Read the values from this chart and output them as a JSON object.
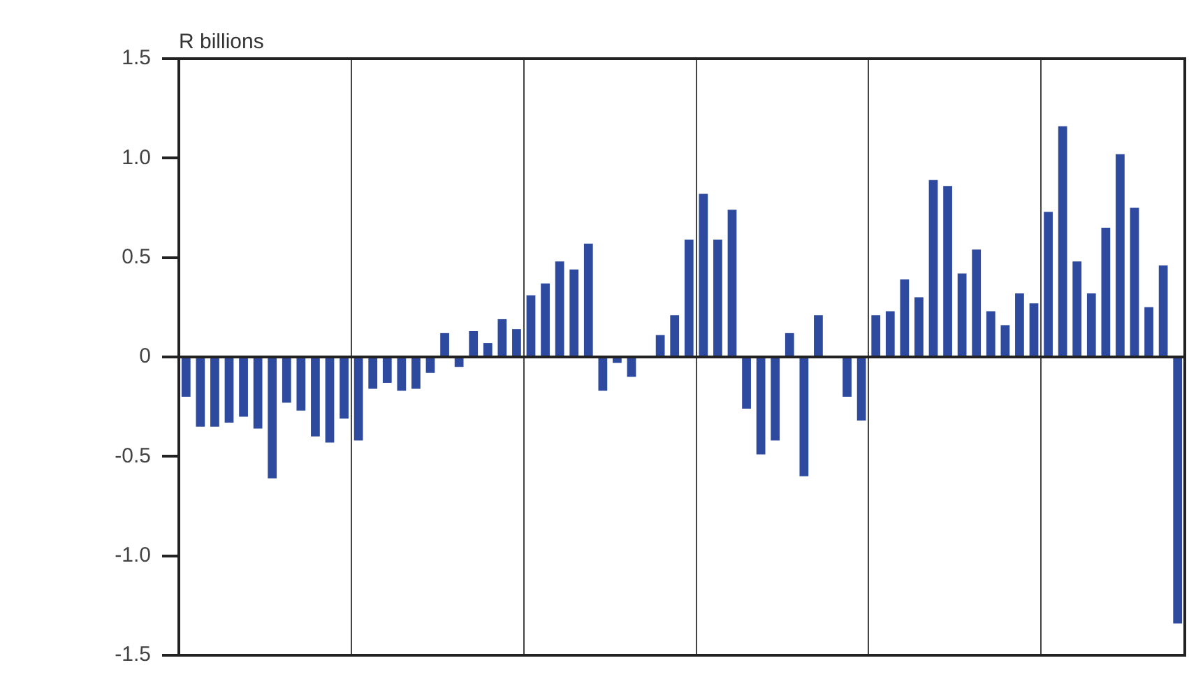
{
  "chart_data": {
    "type": "bar",
    "ylabel": "R billions",
    "categories": [
      null,
      null,
      null,
      null,
      null,
      null,
      null,
      null,
      null,
      null,
      null,
      null,
      null,
      null,
      null,
      null,
      null,
      null,
      null,
      null,
      null,
      null,
      null,
      null,
      null,
      null,
      null,
      null,
      null,
      null,
      null,
      null,
      null,
      null,
      null,
      null,
      null,
      null,
      null,
      null,
      null,
      null,
      null,
      null,
      null,
      null,
      null,
      null,
      null,
      null,
      null,
      null,
      null,
      null,
      null,
      null,
      null,
      null,
      null,
      null,
      null,
      null,
      null,
      null,
      null,
      null,
      null,
      null,
      null,
      null
    ],
    "values": [
      -0.2,
      -0.35,
      -0.35,
      -0.33,
      -0.3,
      -0.36,
      -0.61,
      -0.23,
      -0.27,
      -0.4,
      -0.43,
      -0.31,
      -0.42,
      -0.16,
      -0.13,
      -0.17,
      -0.16,
      -0.08,
      0.12,
      -0.05,
      0.13,
      0.07,
      0.19,
      0.14,
      0.31,
      0.37,
      0.48,
      0.44,
      0.57,
      -0.17,
      -0.03,
      -0.1,
      0,
      0.11,
      0.21,
      0.59,
      0.82,
      0.59,
      0.74,
      -0.26,
      -0.49,
      -0.42,
      0.12,
      -0.6,
      0.21,
      0,
      -0.2,
      -0.32,
      0.21,
      0.23,
      0.39,
      0.3,
      0.89,
      0.86,
      0.42,
      0.54,
      0.23,
      0.16,
      0.32,
      0.27,
      0.73,
      1.16,
      0.48,
      0.32,
      0.65,
      1.02,
      0.75,
      0.25,
      0.46,
      -1.34
    ],
    "color": "#2d4a9e",
    "ylim": [
      -1.5,
      1.5
    ],
    "yticks": [
      -1.5,
      {
        "value": -1,
        "label": "-1.0"
      },
      -0.5,
      0,
      0.5,
      {
        "value": 1,
        "label": "1.0"
      },
      1.5
    ],
    "grid": "x",
    "ref_lines": [
      {
        "axis": "y",
        "value": 0,
        "color": "#222222"
      }
    ]
  }
}
